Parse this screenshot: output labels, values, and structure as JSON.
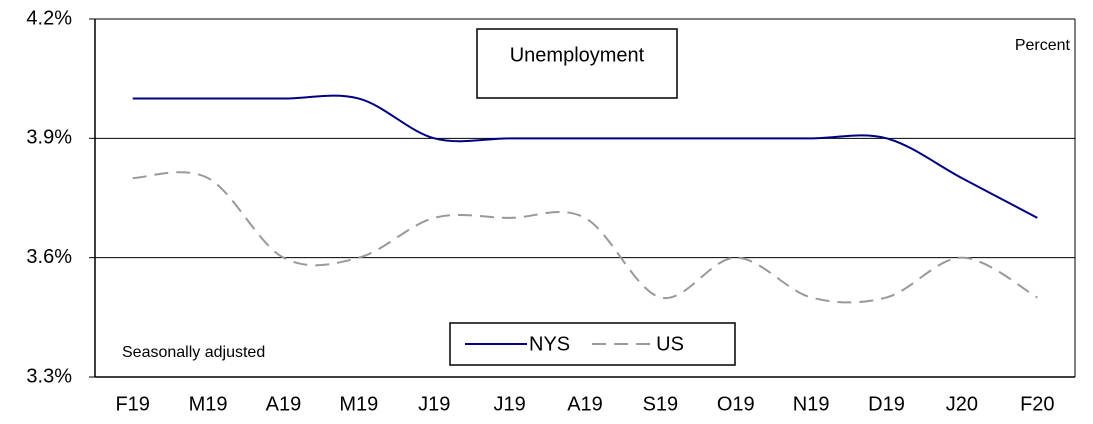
{
  "chart_data": {
    "type": "line",
    "title": "Unemployment",
    "unit_note": "Percent",
    "note": "Seasonally adjusted",
    "categories": [
      "F19",
      "M19",
      "A19",
      "M19",
      "J19",
      "J19",
      "A19",
      "S19",
      "O19",
      "N19",
      "D19",
      "J20",
      "F20"
    ],
    "series": [
      {
        "name": "NYS",
        "color": "#000080",
        "dash": false,
        "values": [
          4.0,
          4.0,
          4.0,
          4.0,
          3.9,
          3.9,
          3.9,
          3.9,
          3.9,
          3.9,
          3.9,
          3.8,
          3.7
        ]
      },
      {
        "name": "US",
        "color": "#999999",
        "dash": true,
        "values": [
          3.8,
          3.8,
          3.6,
          3.6,
          3.7,
          3.7,
          3.7,
          3.5,
          3.6,
          3.5,
          3.5,
          3.6,
          3.5
        ]
      }
    ],
    "ylim": [
      3.3,
      4.2
    ],
    "yticks": [
      {
        "value": 3.3,
        "label": "3.3%"
      },
      {
        "value": 3.6,
        "label": "3.6%"
      },
      {
        "value": 3.9,
        "label": "3.9%"
      },
      {
        "value": 4.2,
        "label": "4.2%"
      }
    ],
    "grid": true
  }
}
